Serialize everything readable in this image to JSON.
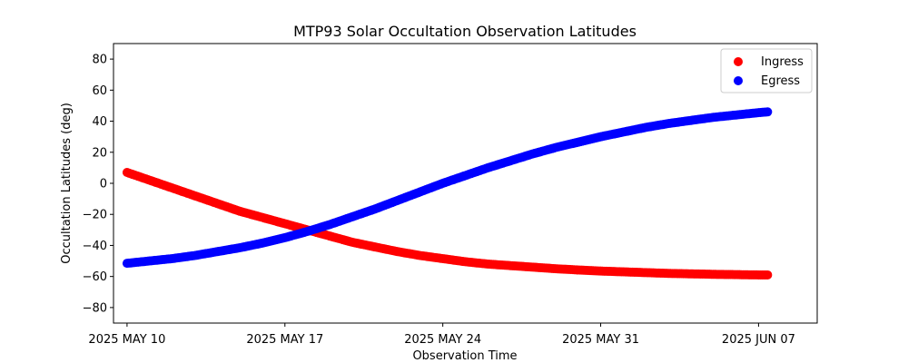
{
  "chart_data": {
    "type": "scatter",
    "title": "MTP93 Solar Occultation Observation Latitudes",
    "xlabel": "Observation Time",
    "ylabel": "Occultation Latitudes (deg)",
    "xlim": [
      -0.6,
      30.6
    ],
    "ylim": [
      -90,
      90
    ],
    "x_ticks": [
      {
        "value": 0,
        "label": "2025 MAY 10"
      },
      {
        "value": 7,
        "label": "2025 MAY 17"
      },
      {
        "value": 14,
        "label": "2025 MAY 24"
      },
      {
        "value": 21,
        "label": "2025 MAY 31"
      },
      {
        "value": 28,
        "label": "2025 JUN 07"
      }
    ],
    "y_ticks": [
      -80,
      -60,
      -40,
      -20,
      0,
      20,
      40,
      60,
      80
    ],
    "x_unit": "days since 2025 MAY 10",
    "legend": {
      "position": "upper-right"
    },
    "series": [
      {
        "name": "Ingress",
        "color": "#ff0000",
        "x": [
          0,
          1,
          2,
          3,
          4,
          5,
          6,
          7,
          8,
          9,
          10,
          11,
          12,
          13,
          14,
          15,
          16,
          17,
          18,
          19,
          20,
          21,
          22,
          23,
          24,
          25,
          26,
          27,
          28,
          28.4
        ],
        "y": [
          7,
          2,
          -3,
          -8,
          -13,
          -18,
          -22,
          -26,
          -30,
          -34,
          -38,
          -41,
          -44,
          -46.5,
          -48.5,
          -50.5,
          -52,
          -53,
          -54,
          -55,
          -55.8,
          -56.5,
          -57,
          -57.5,
          -58,
          -58.3,
          -58.6,
          -58.8,
          -59,
          -59
        ]
      },
      {
        "name": "Egress",
        "color": "#0000ff",
        "x": [
          0,
          1,
          2,
          3,
          4,
          5,
          6,
          7,
          8,
          9,
          10,
          11,
          12,
          13,
          14,
          15,
          16,
          17,
          18,
          19,
          20,
          21,
          22,
          23,
          24,
          25,
          26,
          27,
          28,
          28.4
        ],
        "y": [
          -51.5,
          -50,
          -48.5,
          -46.5,
          -44,
          -41.5,
          -38.5,
          -35,
          -31,
          -26.5,
          -21.5,
          -16.5,
          -11,
          -5.5,
          0,
          5,
          10,
          14.5,
          19,
          23,
          26.5,
          30,
          33,
          36,
          38.5,
          40.5,
          42.5,
          44,
          45.5,
          46
        ]
      }
    ]
  }
}
